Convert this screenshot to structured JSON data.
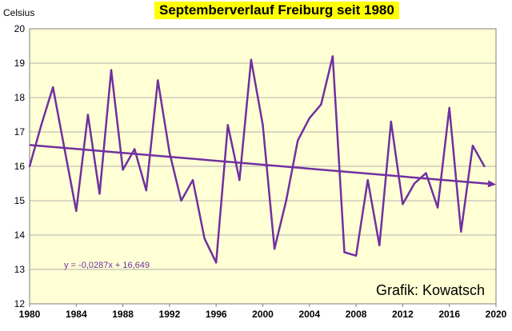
{
  "chart_data": {
    "type": "line",
    "title": "Septemberverlauf Freiburg seit 1980",
    "ylabel": "Celsius",
    "xlabel": "",
    "x": [
      1980,
      1981,
      1982,
      1983,
      1984,
      1985,
      1986,
      1987,
      1988,
      1989,
      1990,
      1991,
      1992,
      1993,
      1994,
      1995,
      1996,
      1997,
      1998,
      1999,
      2000,
      2001,
      2002,
      2003,
      2004,
      2005,
      2006,
      2007,
      2008,
      2009,
      2010,
      2011,
      2012,
      2013,
      2014,
      2015,
      2016,
      2017,
      2018,
      2019
    ],
    "series": [
      {
        "values": [
          16.0,
          17.2,
          18.3,
          16.5,
          14.7,
          17.5,
          15.2,
          18.8,
          15.9,
          16.5,
          15.3,
          18.5,
          16.4,
          15.0,
          15.6,
          13.9,
          13.2,
          17.2,
          15.6,
          19.1,
          17.2,
          13.6,
          15.0,
          16.75,
          17.4,
          17.8,
          19.2,
          13.5,
          13.4,
          15.6,
          13.7,
          17.3,
          14.9,
          15.5,
          15.8,
          14.8,
          17.7,
          14.1,
          16.6,
          16.0
        ],
        "color": "#7030a0"
      }
    ],
    "trendline": {
      "equation": "y = -0,0287x + 16,649",
      "slope": -0.0287,
      "intercept": 16.649,
      "x_start": 1980,
      "x_end": 2020,
      "color": "#7030a0"
    },
    "xlim": [
      1980,
      2020
    ],
    "ylim": [
      12,
      20
    ],
    "xticks": [
      1980,
      1984,
      1988,
      1992,
      1996,
      2000,
      2004,
      2008,
      2012,
      2016,
      2020
    ],
    "yticks": [
      12,
      13,
      14,
      15,
      16,
      17,
      18,
      19,
      20
    ],
    "grid": true,
    "legend": "none",
    "annotation": "Grafik: Kowatsch",
    "plot_background": "#ffffd5",
    "title_background": "#ffff00"
  }
}
